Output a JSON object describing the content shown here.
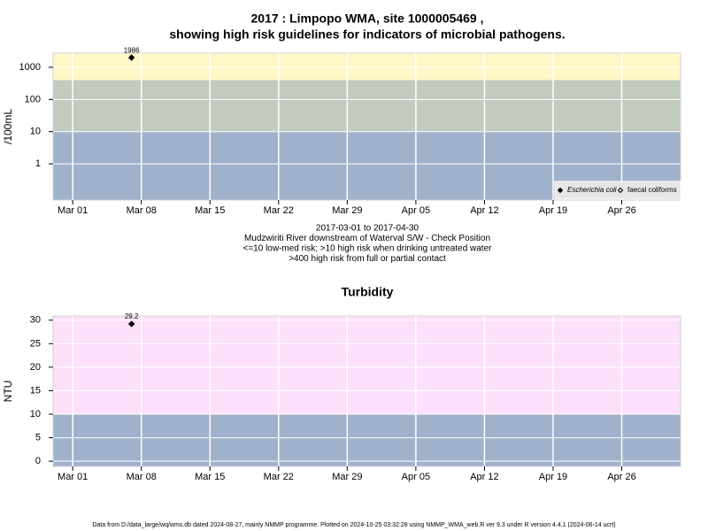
{
  "chart_data": [
    {
      "type": "scatter",
      "title": [
        "2017 : Limpopo WMA, site 1000005469 ,",
        "showing high risk guidelines for indicators of microbial pathogens."
      ],
      "ylabel": "/100mL",
      "log": true,
      "ylim": [
        0.075,
        2750
      ],
      "yticks": [
        1,
        10,
        100,
        1000
      ],
      "xlim": [
        "2017-02-27",
        "2017-05-02"
      ],
      "xticks": [
        {
          "value": "2017-03-01",
          "label": "Mar 01"
        },
        {
          "value": "2017-03-08",
          "label": "Mar 08"
        },
        {
          "value": "2017-03-15",
          "label": "Mar 15"
        },
        {
          "value": "2017-03-22",
          "label": "Mar 22"
        },
        {
          "value": "2017-03-29",
          "label": "Mar 29"
        },
        {
          "value": "2017-04-05",
          "label": "Apr 05"
        },
        {
          "value": "2017-04-12",
          "label": "Apr 12"
        },
        {
          "value": "2017-04-19",
          "label": "Apr 19"
        },
        {
          "value": "2017-04-26",
          "label": "Apr 26"
        }
      ],
      "grid": true,
      "bands": [
        {
          "to": 10,
          "color": "#a0b1cb"
        },
        {
          "from": 10,
          "to": 400,
          "color": "#c3cbc0"
        },
        {
          "from": 400,
          "color": "#fff7c6"
        }
      ],
      "legend": "bottom-right",
      "show_values": true,
      "series": [
        {
          "name": "Escherichia coli",
          "color": "#000000",
          "marker": "filled",
          "x": [
            "2017-03-07"
          ],
          "values": [
            1986
          ]
        },
        {
          "name": "faecal coliforms",
          "color": "#000000",
          "marker": "open",
          "x": [],
          "values": []
        }
      ],
      "notes": [
        "2017-03-01 to 2017-04-30",
        "Mudzwiriti River downstream of Waterval S/W - Check Position",
        "<=10 low-med risk; >10 high risk when drinking untreated water",
        ">400 high risk from full or partial contact"
      ]
    },
    {
      "type": "scatter",
      "title": [
        "Turbidity"
      ],
      "ylabel": "NTU",
      "log": false,
      "ylim": [
        -1.1,
        30.9
      ],
      "yticks": [
        0,
        5,
        10,
        15,
        20,
        25,
        30
      ],
      "xlim": [
        "2017-02-27",
        "2017-05-02"
      ],
      "xticks": [
        {
          "value": "2017-03-01",
          "label": "Mar 01"
        },
        {
          "value": "2017-03-08",
          "label": "Mar 08"
        },
        {
          "value": "2017-03-15",
          "label": "Mar 15"
        },
        {
          "value": "2017-03-22",
          "label": "Mar 22"
        },
        {
          "value": "2017-03-29",
          "label": "Mar 29"
        },
        {
          "value": "2017-04-05",
          "label": "Apr 05"
        },
        {
          "value": "2017-04-12",
          "label": "Apr 12"
        },
        {
          "value": "2017-04-19",
          "label": "Apr 19"
        },
        {
          "value": "2017-04-26",
          "label": "Apr 26"
        }
      ],
      "grid": true,
      "bands": [
        {
          "to": 10,
          "color": "#a0b1cb"
        },
        {
          "from": 10,
          "color": "#fde0fb"
        }
      ],
      "show_values": true,
      "series": [
        {
          "color": "#000000",
          "marker": "filled",
          "x": [
            "2017-03-07"
          ],
          "values": [
            29.2
          ]
        }
      ]
    }
  ],
  "footer": "Data from D:/data_large/wq/wms.db dated 2024-08-27, mainly NMMP programme. Plotted on 2024-10-25 03:32:28 using NMMP_WMA_web.R ver 9.3 under R version 4.4.1 (2024-06-14 ucrt)"
}
